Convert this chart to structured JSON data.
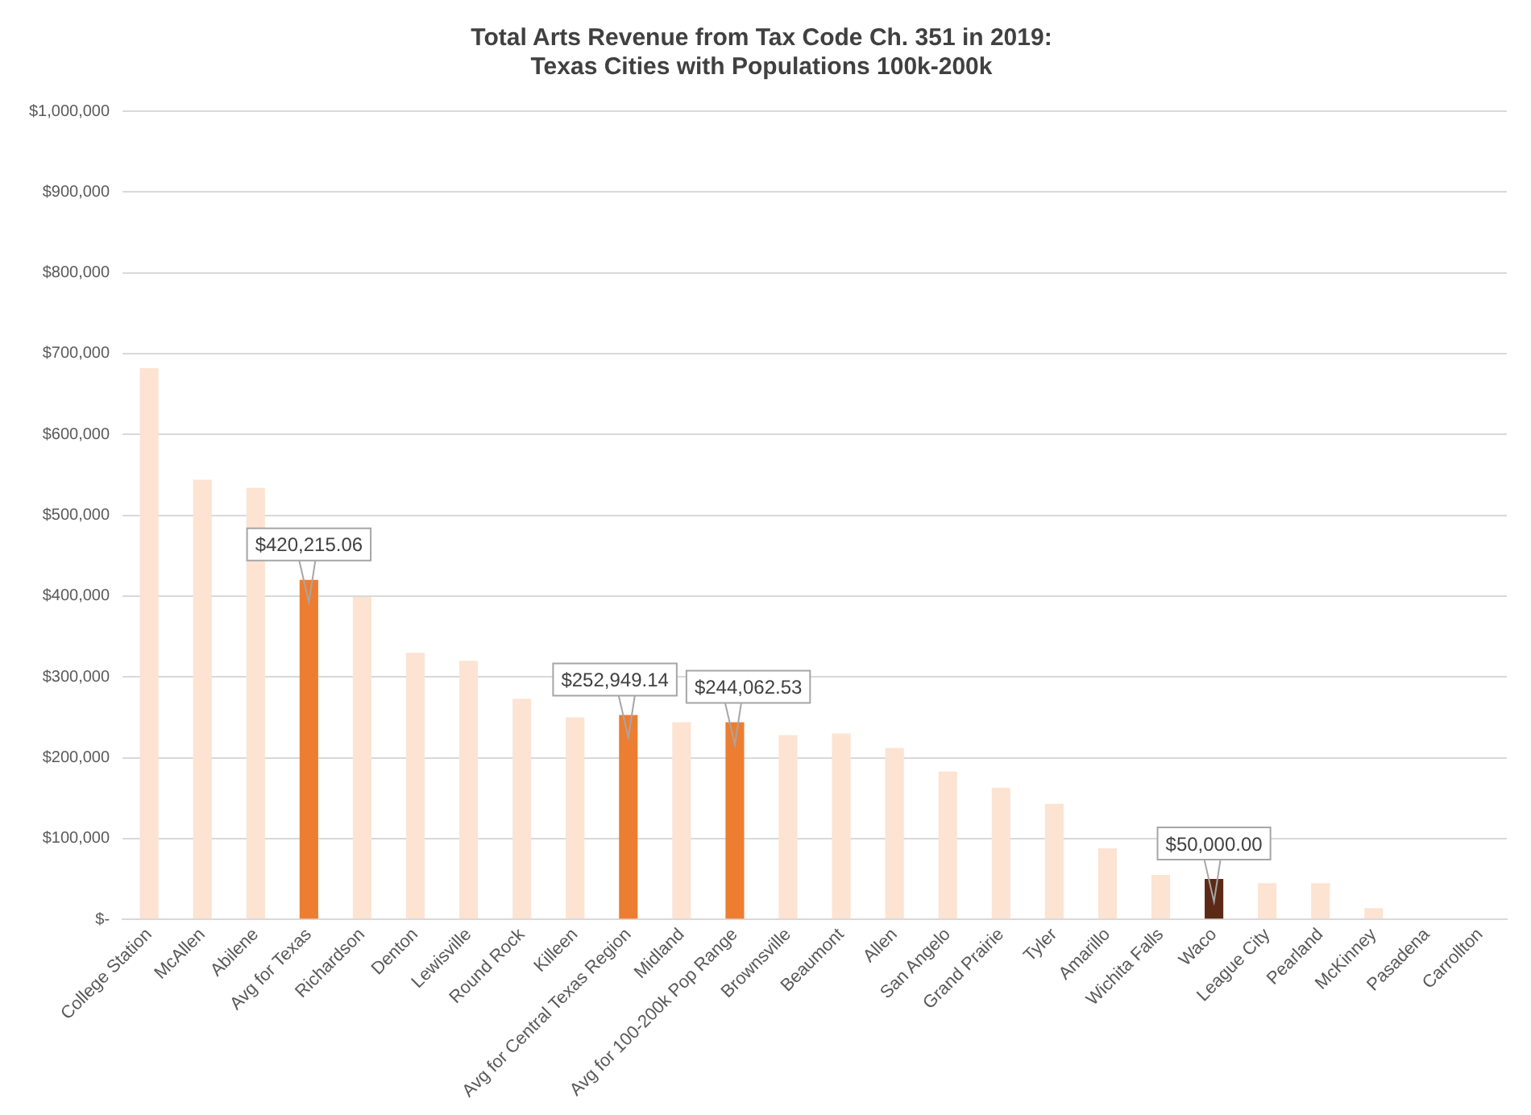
{
  "chart_data": {
    "type": "bar",
    "title": "Total Arts Revenue from Tax Code Ch. 351 in 2019:\nTexas Cities with Populations 100k-200k",
    "categories": [
      "College Station",
      "McAllen",
      "Abilene",
      "Avg for Texas",
      "Richardson",
      "Denton",
      "Lewisville",
      "Round Rock",
      "Killeen",
      "Avg for Central Texas Region",
      "Midland",
      "Avg for 100-200k Pop Range",
      "Brownsville",
      "Beaumont",
      "Allen",
      "San Angelo",
      "Grand Prairie",
      "Tyler",
      "Amarillo",
      "Wichita Falls",
      "Waco",
      "League City",
      "Pearland",
      "McKinney",
      "Pasadena",
      "Carrollton"
    ],
    "values": [
      682000,
      544000,
      534000,
      420215.06,
      399000,
      330000,
      320000,
      273000,
      250000,
      252949.14,
      244000,
      244062.53,
      228000,
      230000,
      212000,
      183000,
      163000,
      143000,
      88000,
      55000,
      50000,
      45000,
      45000,
      14000,
      0,
      0
    ],
    "value_labels": [
      null,
      null,
      null,
      "$420,215.06",
      null,
      null,
      null,
      null,
      null,
      "$252,949.14",
      null,
      "$244,062.53",
      null,
      null,
      null,
      null,
      null,
      null,
      null,
      null,
      "$50,000.00",
      null,
      null,
      null,
      null,
      null
    ],
    "colors": [
      "#fce3d2",
      "#fce3d2",
      "#fce3d2",
      "#ed7d31",
      "#fce3d2",
      "#fce3d2",
      "#fce3d2",
      "#fce3d2",
      "#fce3d2",
      "#ed7d31",
      "#fce3d2",
      "#ed7d31",
      "#fce3d2",
      "#fce3d2",
      "#fce3d2",
      "#fce3d2",
      "#fce3d2",
      "#fce3d2",
      "#fce3d2",
      "#fce3d2",
      "#5b2a17",
      "#fce3d2",
      "#fce3d2",
      "#fce3d2",
      "#fce3d2",
      "#fce3d2"
    ],
    "ylim": [
      0,
      1000000
    ],
    "yticks": [
      {
        "value": 0,
        "label": "$-"
      },
      {
        "value": 100000,
        "label": "$100,000"
      },
      {
        "value": 200000,
        "label": "$200,000"
      },
      {
        "value": 300000,
        "label": "$300,000"
      },
      {
        "value": 400000,
        "label": "$400,000"
      },
      {
        "value": 500000,
        "label": "$500,000"
      },
      {
        "value": 600000,
        "label": "$600,000"
      },
      {
        "value": 700000,
        "label": "$700,000"
      },
      {
        "value": 800000,
        "label": "$800,000"
      },
      {
        "value": 900000,
        "label": "$900,000"
      },
      {
        "value": 1000000,
        "label": "$1,000,000"
      }
    ],
    "grid": "y",
    "legend": false
  }
}
